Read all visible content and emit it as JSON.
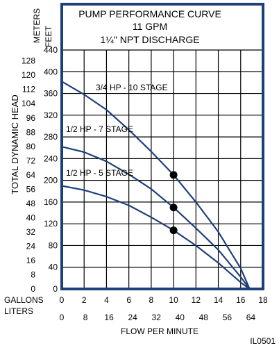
{
  "chart_data": {
    "type": "line",
    "title_lines": [
      "PUMP PERFORMANCE CURVE",
      "11 GPM",
      "1¼\" NPT DISCHARGE"
    ],
    "ylabel": "TOTAL DYNAMIC HEAD",
    "xlabel": "FLOW PER MINUTE",
    "y_units": {
      "primary": "FEET",
      "secondary": "METERS"
    },
    "x_units": {
      "primary": "GALLONS",
      "secondary": "LITERS"
    },
    "figure_id": "IL0501",
    "xlim": [
      0,
      18
    ],
    "ylim": [
      0,
      440
    ],
    "x_ticks_gallons": [
      "0",
      "2",
      "4",
      "6",
      "8",
      "10",
      "12",
      "14",
      "16",
      "18"
    ],
    "x_ticks_liters": [
      "0",
      "8",
      "16",
      "24",
      "32",
      "40",
      "48",
      "56",
      "64"
    ],
    "y_ticks_feet": [
      "0",
      "40",
      "80",
      "120",
      "160",
      "200",
      "240",
      "280",
      "320",
      "360",
      "400",
      "440"
    ],
    "y_ticks_meters": [
      "0",
      "8",
      "16",
      "24",
      "32",
      "40",
      "48",
      "56",
      "64",
      "72",
      "80",
      "88",
      "96",
      "104",
      "112",
      "120",
      "128"
    ],
    "grid": true,
    "series": [
      {
        "name": "3/4 HP - 10 STAGE",
        "color": "#1f3f7a",
        "x": [
          0,
          2,
          4,
          6,
          8,
          10,
          12,
          14,
          16,
          16.8
        ],
        "y": [
          382,
          358,
          330,
          293,
          253,
          210,
          160,
          105,
          38,
          0
        ]
      },
      {
        "name": "1/2 HP - 7 STAGE",
        "color": "#1f3f7a",
        "x": [
          0,
          2,
          4,
          6,
          8,
          10,
          12,
          14,
          16,
          16.8
        ],
        "y": [
          262,
          252,
          235,
          211,
          184,
          150,
          112,
          72,
          22,
          0
        ]
      },
      {
        "name": "1/2 HP - 5 STAGE",
        "color": "#1f3f7a",
        "x": [
          0,
          2,
          4,
          6,
          8,
          10,
          12,
          14,
          16,
          16.8
        ],
        "y": [
          190,
          182,
          170,
          154,
          132,
          108,
          80,
          48,
          12,
          0
        ]
      }
    ],
    "markers": [
      {
        "x": 10,
        "y": 210
      },
      {
        "x": 10,
        "y": 150
      },
      {
        "x": 10,
        "y": 108
      }
    ]
  }
}
